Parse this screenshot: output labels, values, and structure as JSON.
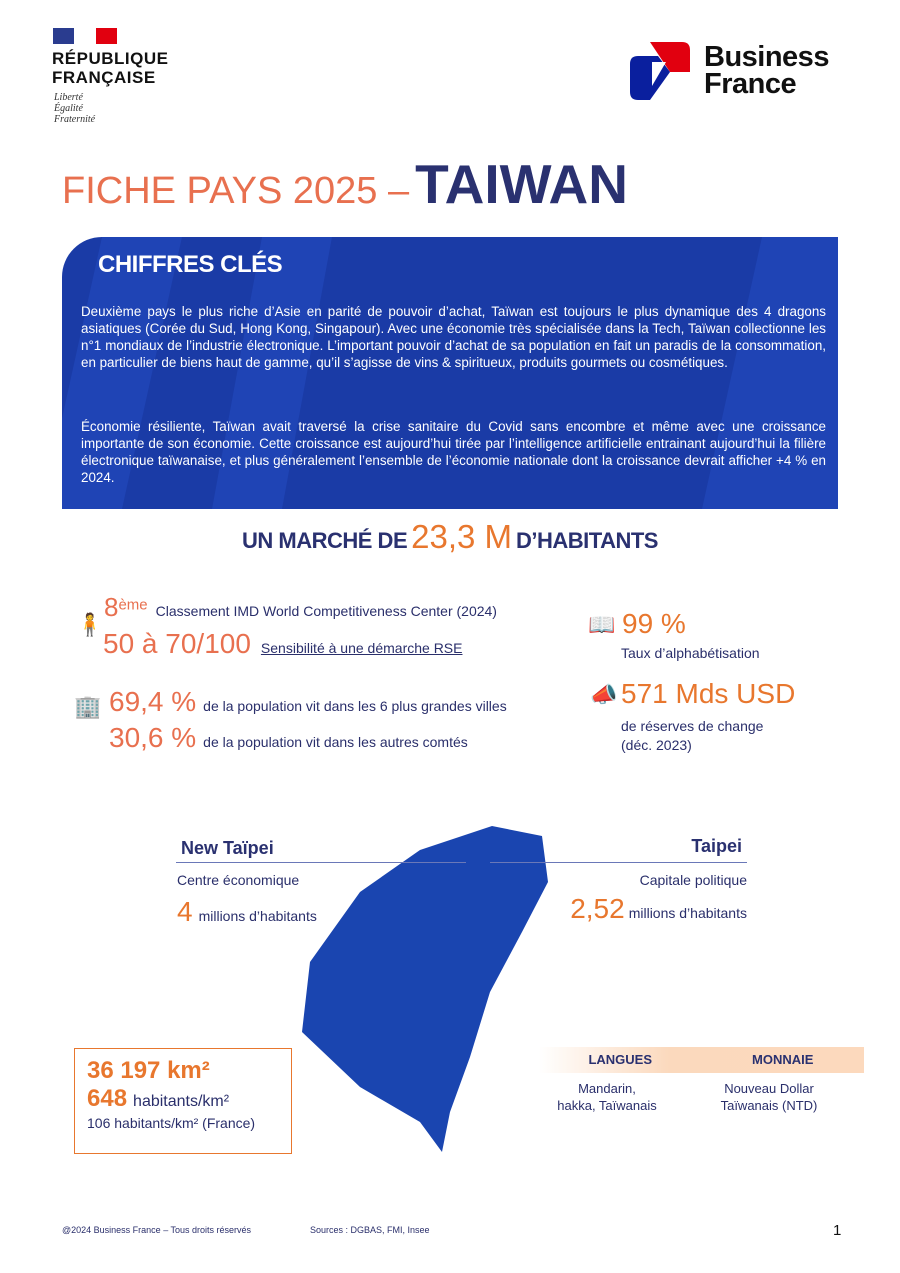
{
  "header": {
    "republique": [
      "RÉPUBLIQUE",
      "FRANÇAISE"
    ],
    "motto": [
      "Liberté",
      "Égalité",
      "Fraternité"
    ],
    "business_france": [
      "Business",
      "France"
    ]
  },
  "title": {
    "prefix": "FICHE PAYS  2025 –",
    "country": "TAIWAN"
  },
  "key_figures": {
    "heading": "CHIFFRES CLÉS",
    "paragraphs": [
      "Deuxième pays le plus riche d’Asie en parité de pouvoir d’achat, Taïwan est toujours le plus dynamique des 4 dragons asiatiques (Corée du Sud, Hong Kong, Singapour). Avec une économie très spécialisée dans la Tech, Taïwan collectionne les n°1 mondiaux de l’industrie électronique. L’important pouvoir d’achat de sa population en fait un paradis de la consommation, en particulier de biens haut de gamme, qu’il s’agisse de vins & spiritueux, produits gourmets ou cosmétiques.",
      "Économie résiliente, Taïwan avait traversé la crise sanitaire du Covid sans encombre et même avec une croissance importante de son économie. Cette croissance est aujourd’hui tirée par l’intelligence artificielle  entrainant aujourd’hui la filière électronique taïwanaise, et plus généralement l’ensemble de l’économie nationale dont la croissance devrait afficher +4 % en 2024."
    ]
  },
  "market": {
    "prefix": "UN MARCHÉ DE",
    "value": "23,3 M",
    "suffix": "D’HABITANTS"
  },
  "stats": {
    "rank": {
      "value": "8",
      "sup": "ème",
      "label": "Classement IMD World Competitiveness Center (2024)"
    },
    "rse": {
      "value": "50 à 70/100",
      "label": "Sensibilité à une démarche RSE"
    },
    "urban": {
      "value": "69,4 %",
      "label": "de la population vit dans les 6 plus grandes villes"
    },
    "other": {
      "value": "30,6 %",
      "label": "de la population vit dans les autres comtés"
    },
    "literacy": {
      "value": "99 %",
      "label": "Taux d’alphabétisation"
    },
    "reserves": {
      "value": "571 Mds USD",
      "label": [
        "de réserves de change",
        "(déc. 2023)"
      ]
    }
  },
  "cities": [
    {
      "name": "New Taïpei",
      "desc": "Centre économique",
      "value": "4",
      "unit": "millions d’habitants"
    },
    {
      "name": "Taipei",
      "desc": "Capitale politique",
      "value": "2,52",
      "unit": "millions d’habitants"
    }
  ],
  "area": {
    "surface": "36 197 km²",
    "density_value": "648",
    "density_unit": "habitants/km²",
    "france": "106 habitants/km² (France)"
  },
  "languages": {
    "label": "LANGUES",
    "value": [
      "Mandarin,",
      "hakka, Taïwanais"
    ]
  },
  "currency": {
    "label": "MONNAIE",
    "value": [
      "Nouveau Dollar",
      "Taïwanais (NTD)"
    ]
  },
  "footer": {
    "copyright": "@2024 Business France – Tous droits réservés",
    "sources": "Sources : DGBAS, FMI, Insee",
    "page": "1"
  },
  "colors": {
    "navy": "#2a3170",
    "orange": "#e8772e",
    "salmon": "#e8704f",
    "blue": "#1a3ba6"
  }
}
